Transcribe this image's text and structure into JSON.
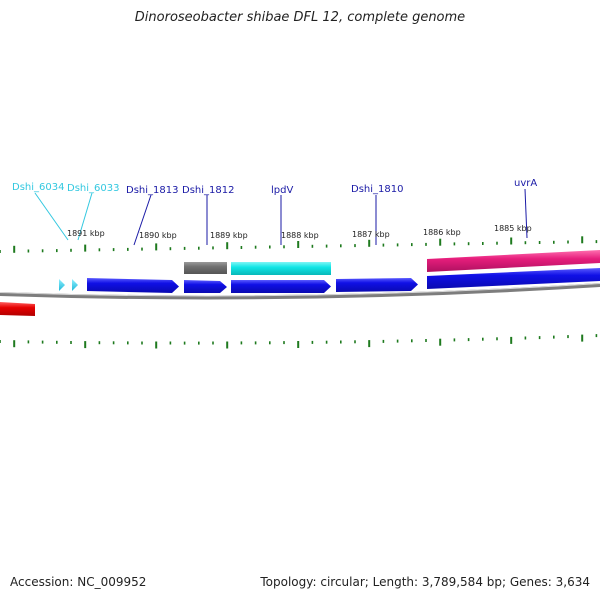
{
  "title": "Dinoroseobacter shibae DFL 12, complete genome",
  "footer": {
    "accession": "Accession: NC_009952",
    "topology": "Topology: circular; Length: 3,789,584 bp; Genes: 3,634"
  },
  "kbp_labels": [
    "1891 kbp",
    "1890 kbp",
    "1889 kbp",
    "1888 kbp",
    "1887 kbp",
    "1886 kbp",
    "1885 kbp"
  ],
  "genes": [
    {
      "name": "Dshi_6034",
      "color": "#33c8e0"
    },
    {
      "name": "Dshi_6033",
      "color": "#33c8e0"
    },
    {
      "name": "Dshi_1813",
      "color": "#1a1aa6"
    },
    {
      "name": "Dshi_1812",
      "color": "#1a1aa6"
    },
    {
      "name": "lpdV",
      "color": "#1a1aa6"
    },
    {
      "name": "Dshi_1810",
      "color": "#1a1aa6"
    },
    {
      "name": "uvrA",
      "color": "#1a1aa6"
    }
  ],
  "colors": {
    "cds": "#1010e0",
    "cds_small": "#33c8e0",
    "rna_grey": "#6e6e6e",
    "rna_cyan": "#10e0e0",
    "pink": "#e0207a",
    "red": "#e00000",
    "backbone": "#808080",
    "ticks": "#1e7a1e"
  }
}
